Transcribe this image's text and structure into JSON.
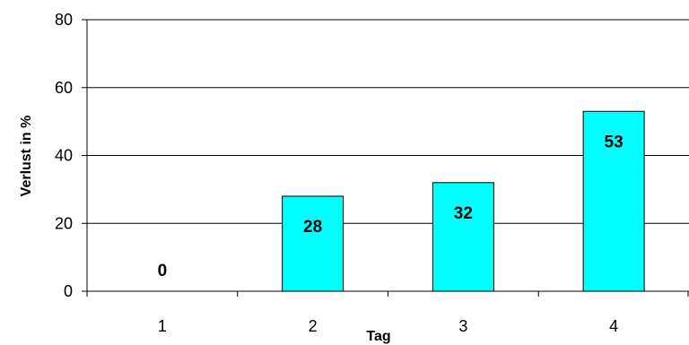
{
  "chart_data": {
    "type": "bar",
    "categories": [
      "1",
      "2",
      "3",
      "4"
    ],
    "values": [
      0,
      28,
      32,
      53
    ],
    "data_labels": [
      "0",
      "28",
      "32",
      "53"
    ],
    "xlabel": "Tag",
    "ylabel": "Verlust in %",
    "ylim": [
      0,
      80
    ],
    "yticks": [
      0,
      20,
      40,
      60,
      80
    ],
    "grid": true,
    "legend": "none",
    "bar_color": "#00ffff",
    "bar_edge_color": "#000000"
  }
}
